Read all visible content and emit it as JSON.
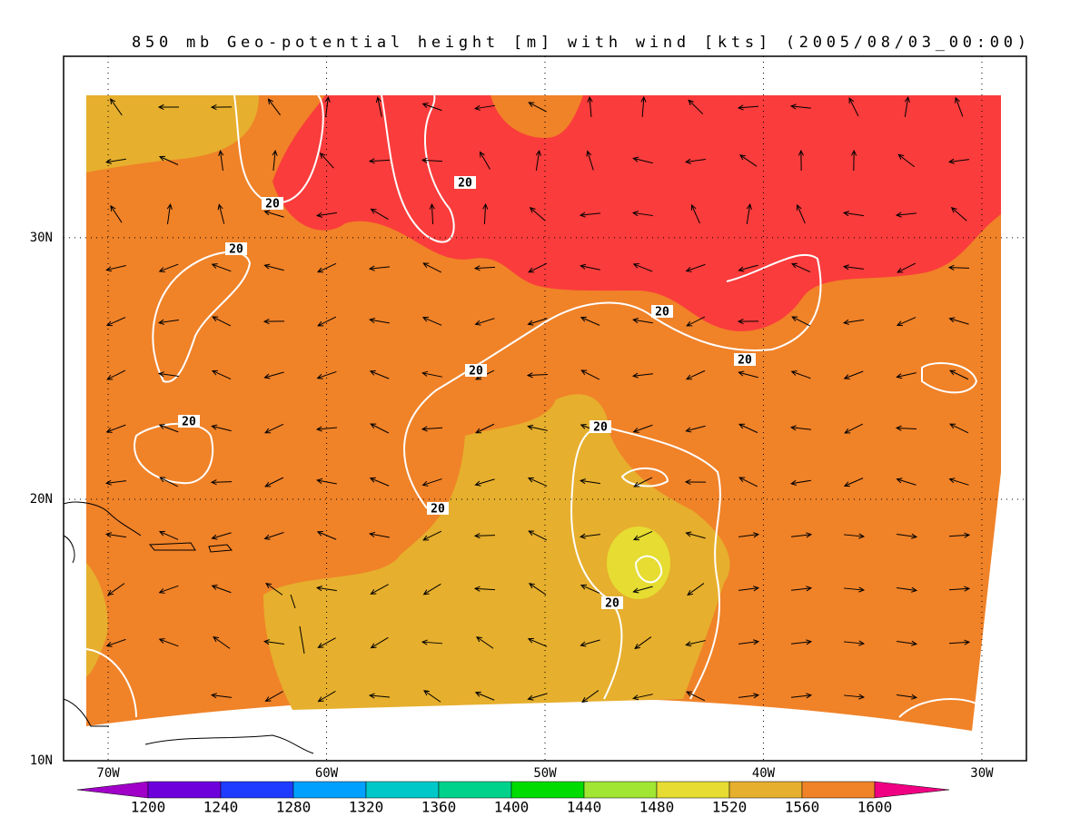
{
  "title": "850 mb Geo-potential height [m] with wind [kts] (2005/08/03_00:00)",
  "map": {
    "lon_range": [
      -72.04,
      -27.96
    ],
    "lat_range": [
      10,
      36.94
    ],
    "lon_ticks": [
      {
        "value": -70,
        "label": "70W"
      },
      {
        "value": -60,
        "label": "60W"
      },
      {
        "value": -50,
        "label": "50W"
      },
      {
        "value": -40,
        "label": "40W"
      },
      {
        "value": -30,
        "label": "30W"
      }
    ],
    "lat_ticks": [
      {
        "value": 10,
        "label": "10N"
      },
      {
        "value": 20,
        "label": "20N"
      },
      {
        "value": 30,
        "label": "30N"
      }
    ],
    "grid": true
  },
  "colorbar": {
    "levels": [
      1200,
      1240,
      1280,
      1320,
      1360,
      1400,
      1440,
      1480,
      1520,
      1560,
      1600
    ],
    "colors": [
      "#a000c8",
      "#6e00dc",
      "#1e3cff",
      "#00a0ff",
      "#00c8c8",
      "#00d28c",
      "#00dc00",
      "#a0e632",
      "#e6dc32",
      "#e6af2d",
      "#f08228",
      "#fa3c3c",
      "#f00082"
    ]
  },
  "contour_labels": [
    20,
    20,
    20,
    20,
    20,
    20,
    20,
    20,
    20,
    20
  ]
}
